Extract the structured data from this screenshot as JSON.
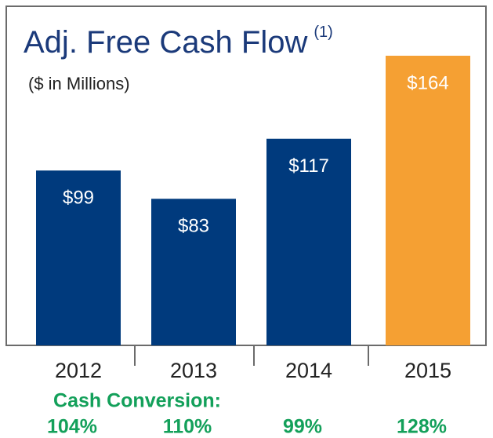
{
  "chart_data": {
    "type": "bar",
    "title": "Adj. Free Cash Flow",
    "title_note": "(1)",
    "subtitle": "($ in Millions)",
    "categories": [
      "2012",
      "2013",
      "2014",
      "2015"
    ],
    "values": [
      99,
      83,
      117,
      164
    ],
    "value_labels": [
      "$99",
      "$83",
      "$117",
      "$164"
    ],
    "colors": [
      "#003a7d",
      "#003a7d",
      "#003a7d",
      "#f5a033"
    ],
    "cash_conversion": {
      "label": "Cash Conversion:",
      "values": [
        104,
        110,
        99,
        128
      ],
      "value_labels": [
        "104%",
        "110%",
        "99%",
        "128%"
      ],
      "color": "#13a05a"
    }
  }
}
